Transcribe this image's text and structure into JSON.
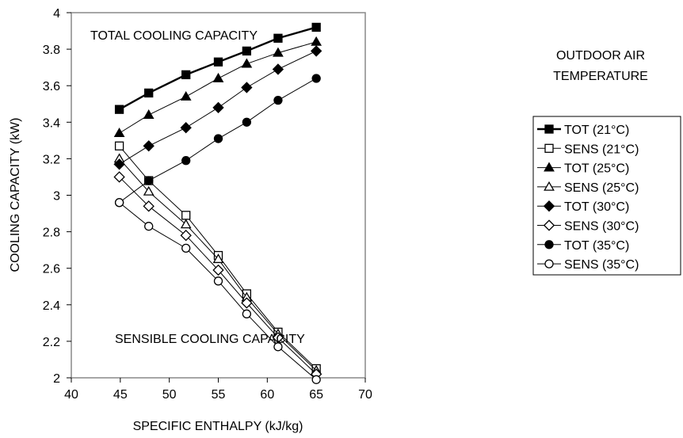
{
  "chart_data": {
    "type": "line",
    "xlabel": "SPECIFIC ENTHALPY (kJ/kg)",
    "ylabel": "COOLING CAPACITY (kW)",
    "xlim": [
      40,
      70
    ],
    "ylim": [
      2,
      4
    ],
    "x_ticks": [
      "40",
      "45",
      "50",
      "55",
      "60",
      "65",
      "70"
    ],
    "y_ticks": [
      "2",
      "2.2",
      "2.4",
      "2.6",
      "2.8",
      "3",
      "3.2",
      "3.4",
      "3.6",
      "3.8",
      "4"
    ],
    "grid": false,
    "legend_position": "right",
    "annotations": [
      "TOTAL COOLING CAPACITY",
      "SENSIBLE COOLING CAPACITY"
    ],
    "legend_title": [
      "OUTDOOR AIR",
      "TEMPERATURE"
    ],
    "x": [
      44.9,
      47.9,
      51.7,
      55.0,
      57.9,
      61.1,
      65.0
    ],
    "series": [
      {
        "name": "TOT (21°C)",
        "marker": "square",
        "filled": true,
        "bold": true,
        "values": [
          3.47,
          3.56,
          3.66,
          3.73,
          3.79,
          3.86,
          3.92
        ]
      },
      {
        "name": "SENS (21°C)",
        "marker": "square",
        "filled": false,
        "values": [
          3.27,
          3.08,
          2.89,
          2.67,
          2.46,
          2.25,
          2.05
        ]
      },
      {
        "name": "TOT (25°C)",
        "marker": "triangle",
        "filled": true,
        "values": [
          3.34,
          3.44,
          3.54,
          3.64,
          3.72,
          3.78,
          3.84
        ]
      },
      {
        "name": "SENS (25°C)",
        "marker": "triangle",
        "filled": false,
        "values": [
          3.2,
          3.02,
          2.84,
          2.65,
          2.44,
          2.24,
          2.04
        ]
      },
      {
        "name": "TOT (30°C)",
        "marker": "diamond",
        "filled": true,
        "values": [
          3.17,
          3.27,
          3.37,
          3.48,
          3.59,
          3.69,
          3.79
        ]
      },
      {
        "name": "SENS (30°C)",
        "marker": "diamond",
        "filled": false,
        "values": [
          3.1,
          2.94,
          2.78,
          2.59,
          2.41,
          2.22,
          2.02
        ]
      },
      {
        "name": "TOT (35°C)",
        "marker": "circle",
        "filled": true,
        "values": [
          2.96,
          3.08,
          3.19,
          3.31,
          3.4,
          3.52,
          3.64
        ]
      },
      {
        "name": "SENS (35°C)",
        "marker": "circle",
        "filled": false,
        "values": [
          2.96,
          2.83,
          2.71,
          2.53,
          2.35,
          2.17,
          1.99
        ]
      }
    ]
  }
}
